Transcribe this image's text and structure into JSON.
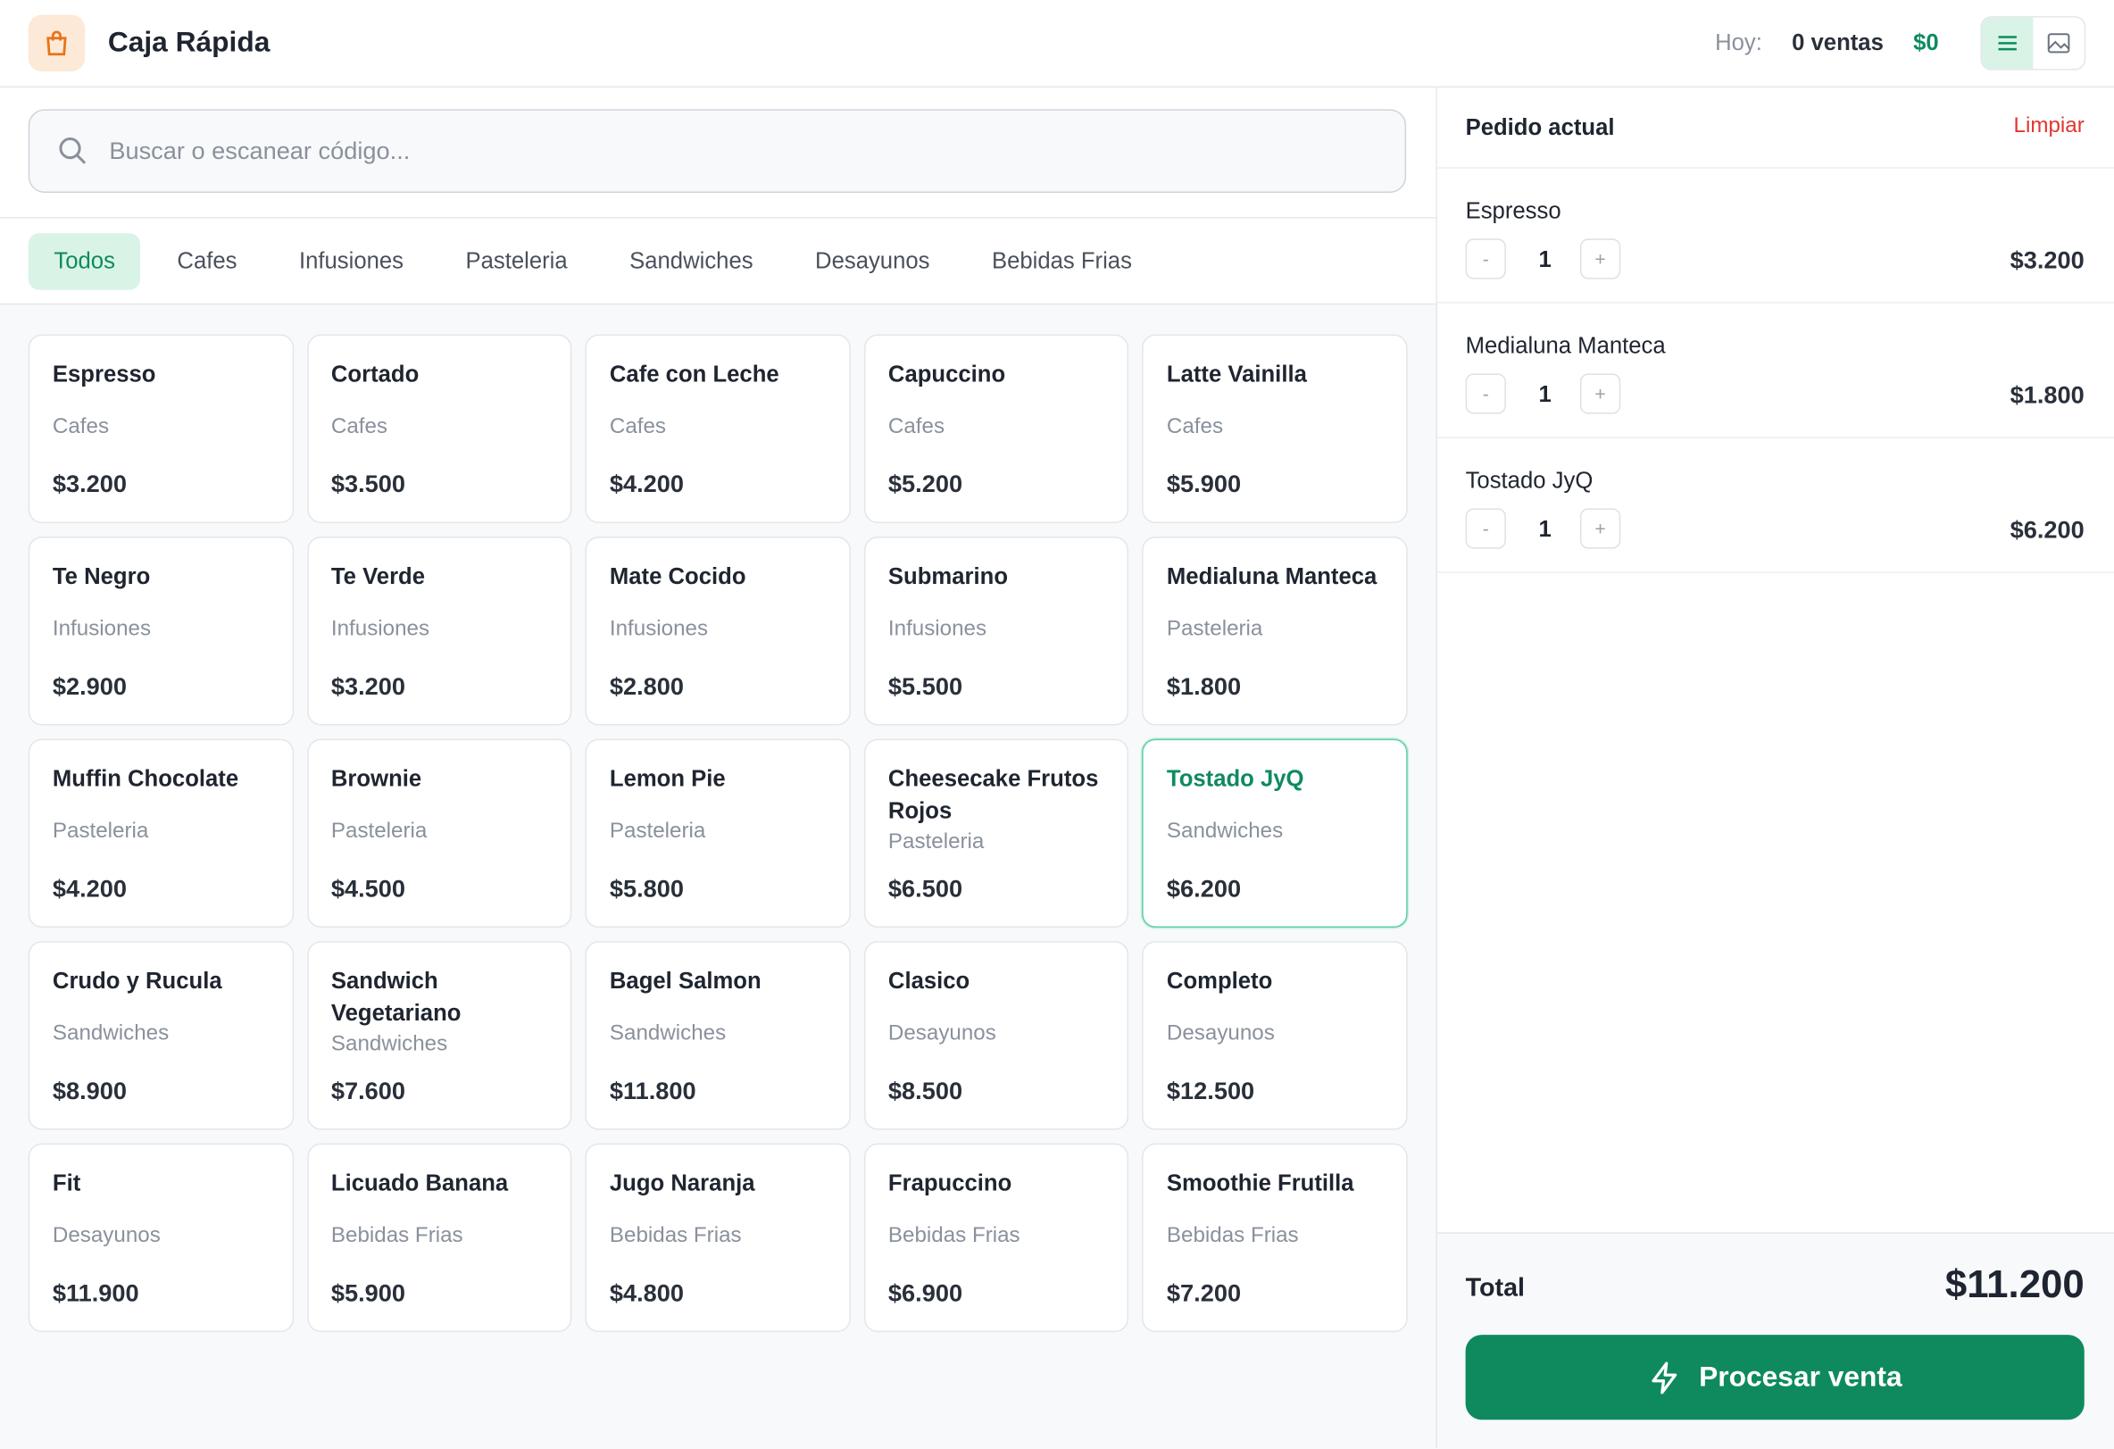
{
  "header": {
    "title": "Caja Rápida",
    "today_label": "Hoy:",
    "sales_count": "0 ventas",
    "sales_total": "$0"
  },
  "search": {
    "placeholder": "Buscar o escanear código..."
  },
  "tabs": [
    {
      "label": "Todos",
      "active": true
    },
    {
      "label": "Cafes"
    },
    {
      "label": "Infusiones"
    },
    {
      "label": "Pasteleria"
    },
    {
      "label": "Sandwiches"
    },
    {
      "label": "Desayunos"
    },
    {
      "label": "Bebidas Frias"
    }
  ],
  "products": [
    {
      "name": "Espresso",
      "category": "Cafes",
      "price": "$3.200"
    },
    {
      "name": "Cortado",
      "category": "Cafes",
      "price": "$3.500"
    },
    {
      "name": "Cafe con Leche",
      "category": "Cafes",
      "price": "$4.200"
    },
    {
      "name": "Capuccino",
      "category": "Cafes",
      "price": "$5.200"
    },
    {
      "name": "Latte Vainilla",
      "category": "Cafes",
      "price": "$5.900"
    },
    {
      "name": "Te Negro",
      "category": "Infusiones",
      "price": "$2.900"
    },
    {
      "name": "Te Verde",
      "category": "Infusiones",
      "price": "$3.200"
    },
    {
      "name": "Mate Cocido",
      "category": "Infusiones",
      "price": "$2.800"
    },
    {
      "name": "Submarino",
      "category": "Infusiones",
      "price": "$5.500"
    },
    {
      "name": "Medialuna Manteca",
      "category": "Pasteleria",
      "price": "$1.800"
    },
    {
      "name": "Muffin Chocolate",
      "category": "Pasteleria",
      "price": "$4.200"
    },
    {
      "name": "Brownie",
      "category": "Pasteleria",
      "price": "$4.500"
    },
    {
      "name": "Lemon Pie",
      "category": "Pasteleria",
      "price": "$5.800"
    },
    {
      "name": "Cheesecake Frutos Rojos",
      "category": "Pasteleria",
      "price": "$6.500"
    },
    {
      "name": "Tostado JyQ",
      "category": "Sandwiches",
      "price": "$6.200",
      "selected": true
    },
    {
      "name": "Crudo y Rucula",
      "category": "Sandwiches",
      "price": "$8.900"
    },
    {
      "name": "Sandwich Vegetariano",
      "category": "Sandwiches",
      "price": "$7.600"
    },
    {
      "name": "Bagel Salmon",
      "category": "Sandwiches",
      "price": "$11.800"
    },
    {
      "name": "Clasico",
      "category": "Desayunos",
      "price": "$8.500"
    },
    {
      "name": "Completo",
      "category": "Desayunos",
      "price": "$12.500"
    },
    {
      "name": "Fit",
      "category": "Desayunos",
      "price": "$11.900"
    },
    {
      "name": "Licuado Banana",
      "category": "Bebidas Frias",
      "price": "$5.900"
    },
    {
      "name": "Jugo Naranja",
      "category": "Bebidas Frias",
      "price": "$4.800"
    },
    {
      "name": "Frapuccino",
      "category": "Bebidas Frias",
      "price": "$6.900"
    },
    {
      "name": "Smoothie Frutilla",
      "category": "Bebidas Frias",
      "price": "$7.200"
    }
  ],
  "order": {
    "title": "Pedido actual",
    "clear": "Limpiar",
    "minus": "-",
    "plus": "+",
    "items": [
      {
        "name": "Espresso",
        "qty": 1,
        "price": "$3.200"
      },
      {
        "name": "Medialuna Manteca",
        "qty": 1,
        "price": "$1.800"
      },
      {
        "name": "Tostado JyQ",
        "qty": 1,
        "price": "$6.200"
      }
    ],
    "total_label": "Total",
    "total": "$11.200",
    "submit": "Procesar venta"
  }
}
